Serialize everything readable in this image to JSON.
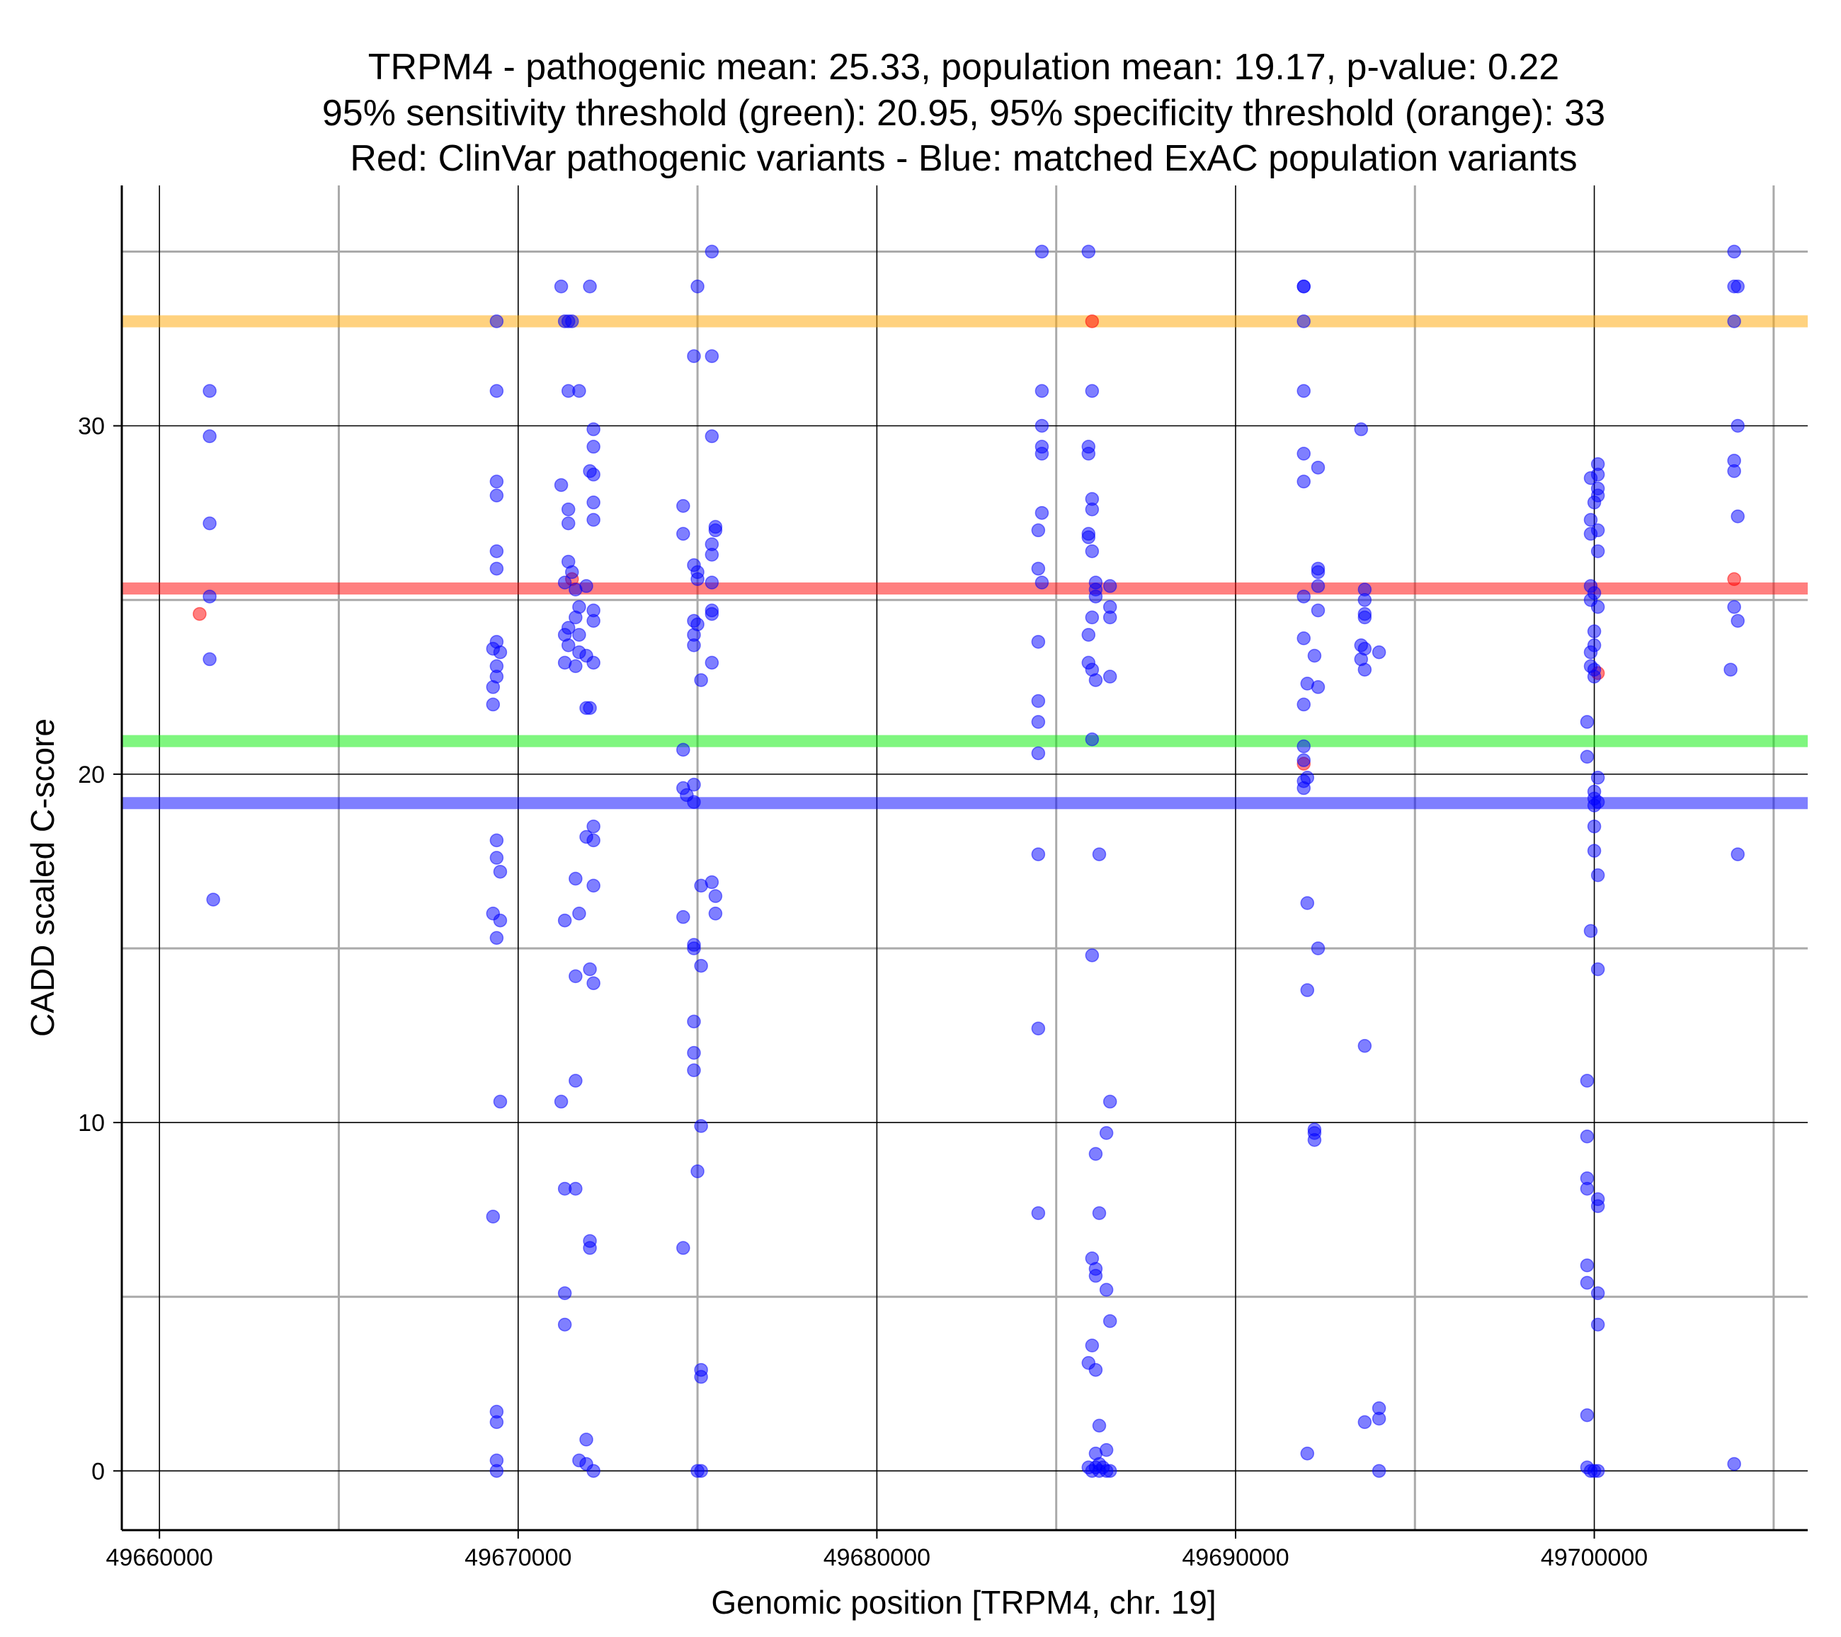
{
  "chart_data": {
    "type": "scatter",
    "title_lines": [
      "TRPM4 - pathogenic mean: 25.33, population mean: 19.17, p-value: 0.22",
      "95% sensitivity threshold (green): 20.95, 95% specificity threshold (orange): 33",
      "Red: ClinVar pathogenic variants - Blue: matched ExAC population variants"
    ],
    "xlabel": "Genomic position [TRPM4, chr. 19]",
    "ylabel": "CADD scaled C-score",
    "xlim": [
      49658950,
      49705950
    ],
    "ylim": [
      -1.7,
      36.9
    ],
    "x_major_ticks": [
      49660000,
      49670000,
      49680000,
      49690000,
      49700000
    ],
    "x_tick_labels": [
      "49660000",
      "49670000",
      "49680000",
      "49690000",
      "49700000"
    ],
    "x_minor_grid": [
      49665000,
      49675000,
      49685000,
      49695000,
      49705000
    ],
    "y_major_ticks": [
      0,
      10,
      20,
      30
    ],
    "y_tick_labels": [
      "0",
      "10",
      "20",
      "30"
    ],
    "y_minor_grid": [
      5,
      15,
      25,
      35
    ],
    "colors": {
      "pathogenic": "#ff0000",
      "population": "#0000ff",
      "sensitivity": "#00ee00",
      "specificity": "#ffa500",
      "pathogenic_mean_line": "#ff0000",
      "population_mean_line": "#0000ff",
      "major_grid": "#000000",
      "minor_grid": "#aaaaaa"
    },
    "reference_lines": [
      {
        "name": "specificity-threshold",
        "value": 33,
        "color": "#ffa500"
      },
      {
        "name": "pathogenic-mean",
        "value": 25.33,
        "color": "#ff0000"
      },
      {
        "name": "sensitivity-threshold",
        "value": 20.95,
        "color": "#00ee00"
      },
      {
        "name": "population-mean",
        "value": 19.17,
        "color": "#0000ff"
      }
    ],
    "pathogenic": [
      {
        "x": 49661120,
        "y": 24.6
      },
      {
        "x": 49671500,
        "y": 25.6
      },
      {
        "x": 49686000,
        "y": 33.0
      },
      {
        "x": 49691900,
        "y": 20.3
      },
      {
        "x": 49700100,
        "y": 22.9
      },
      {
        "x": 49703900,
        "y": 25.6
      }
    ],
    "population": [
      {
        "x": 49661400,
        "y": 31.0
      },
      {
        "x": 49661400,
        "y": 29.7
      },
      {
        "x": 49661400,
        "y": 27.2
      },
      {
        "x": 49661400,
        "y": 25.1
      },
      {
        "x": 49661400,
        "y": 23.3
      },
      {
        "x": 49661500,
        "y": 16.4
      },
      {
        "x": 49669400,
        "y": 33.0
      },
      {
        "x": 49669400,
        "y": 31.0
      },
      {
        "x": 49669400,
        "y": 28.4
      },
      {
        "x": 49669400,
        "y": 28.0
      },
      {
        "x": 49669400,
        "y": 26.4
      },
      {
        "x": 49669400,
        "y": 25.9
      },
      {
        "x": 49669400,
        "y": 23.8
      },
      {
        "x": 49669300,
        "y": 23.6
      },
      {
        "x": 49669500,
        "y": 23.5
      },
      {
        "x": 49669400,
        "y": 23.1
      },
      {
        "x": 49669400,
        "y": 22.8
      },
      {
        "x": 49669300,
        "y": 22.5
      },
      {
        "x": 49669300,
        "y": 22.0
      },
      {
        "x": 49669400,
        "y": 18.1
      },
      {
        "x": 49669400,
        "y": 17.6
      },
      {
        "x": 49669500,
        "y": 17.2
      },
      {
        "x": 49669300,
        "y": 16.0
      },
      {
        "x": 49669500,
        "y": 15.8
      },
      {
        "x": 49669400,
        "y": 15.3
      },
      {
        "x": 49669500,
        "y": 10.6
      },
      {
        "x": 49669300,
        "y": 7.3
      },
      {
        "x": 49669400,
        "y": 1.7
      },
      {
        "x": 49669400,
        "y": 1.4
      },
      {
        "x": 49669400,
        "y": 0.3
      },
      {
        "x": 49669400,
        "y": 0.0
      },
      {
        "x": 49671200,
        "y": 34.0
      },
      {
        "x": 49671300,
        "y": 33.0
      },
      {
        "x": 49671400,
        "y": 33.0
      },
      {
        "x": 49671500,
        "y": 33.0
      },
      {
        "x": 49671400,
        "y": 31.0
      },
      {
        "x": 49671700,
        "y": 31.0
      },
      {
        "x": 49671200,
        "y": 28.3
      },
      {
        "x": 49671400,
        "y": 27.6
      },
      {
        "x": 49671400,
        "y": 27.2
      },
      {
        "x": 49671400,
        "y": 26.1
      },
      {
        "x": 49671500,
        "y": 25.8
      },
      {
        "x": 49671300,
        "y": 25.5
      },
      {
        "x": 49671600,
        "y": 25.3
      },
      {
        "x": 49671700,
        "y": 24.8
      },
      {
        "x": 49671600,
        "y": 24.5
      },
      {
        "x": 49671400,
        "y": 24.2
      },
      {
        "x": 49671300,
        "y": 24.0
      },
      {
        "x": 49671700,
        "y": 24.0
      },
      {
        "x": 49671400,
        "y": 23.7
      },
      {
        "x": 49671700,
        "y": 23.5
      },
      {
        "x": 49671300,
        "y": 23.2
      },
      {
        "x": 49671600,
        "y": 23.1
      },
      {
        "x": 49671600,
        "y": 17.0
      },
      {
        "x": 49671700,
        "y": 16.0
      },
      {
        "x": 49671300,
        "y": 15.8
      },
      {
        "x": 49671600,
        "y": 14.2
      },
      {
        "x": 49671600,
        "y": 11.2
      },
      {
        "x": 49671200,
        "y": 10.6
      },
      {
        "x": 49671300,
        "y": 8.1
      },
      {
        "x": 49671600,
        "y": 8.1
      },
      {
        "x": 49671300,
        "y": 5.1
      },
      {
        "x": 49671300,
        "y": 4.2
      },
      {
        "x": 49671700,
        "y": 0.3
      },
      {
        "x": 49672000,
        "y": 34.0
      },
      {
        "x": 49672100,
        "y": 29.9
      },
      {
        "x": 49672100,
        "y": 29.4
      },
      {
        "x": 49672000,
        "y": 28.7
      },
      {
        "x": 49672100,
        "y": 28.6
      },
      {
        "x": 49672100,
        "y": 27.8
      },
      {
        "x": 49672100,
        "y": 27.3
      },
      {
        "x": 49671900,
        "y": 25.4
      },
      {
        "x": 49672100,
        "y": 24.7
      },
      {
        "x": 49672100,
        "y": 24.4
      },
      {
        "x": 49671900,
        "y": 23.4
      },
      {
        "x": 49672100,
        "y": 23.2
      },
      {
        "x": 49671900,
        "y": 21.9
      },
      {
        "x": 49672000,
        "y": 21.9
      },
      {
        "x": 49672100,
        "y": 18.5
      },
      {
        "x": 49671900,
        "y": 18.2
      },
      {
        "x": 49672100,
        "y": 18.1
      },
      {
        "x": 49672100,
        "y": 16.8
      },
      {
        "x": 49672000,
        "y": 14.4
      },
      {
        "x": 49672100,
        "y": 14.0
      },
      {
        "x": 49672000,
        "y": 6.6
      },
      {
        "x": 49672000,
        "y": 6.4
      },
      {
        "x": 49671900,
        "y": 0.9
      },
      {
        "x": 49671900,
        "y": 0.2
      },
      {
        "x": 49672100,
        "y": 0.0
      },
      {
        "x": 49675000,
        "y": 34.0
      },
      {
        "x": 49675400,
        "y": 35.0
      },
      {
        "x": 49674900,
        "y": 32.0
      },
      {
        "x": 49675400,
        "y": 32.0
      },
      {
        "x": 49675400,
        "y": 29.7
      },
      {
        "x": 49674600,
        "y": 27.7
      },
      {
        "x": 49674600,
        "y": 26.9
      },
      {
        "x": 49675500,
        "y": 27.0
      },
      {
        "x": 49675500,
        "y": 27.1
      },
      {
        "x": 49675400,
        "y": 26.6
      },
      {
        "x": 49675400,
        "y": 26.3
      },
      {
        "x": 49674900,
        "y": 26.0
      },
      {
        "x": 49675000,
        "y": 25.8
      },
      {
        "x": 49675000,
        "y": 25.6
      },
      {
        "x": 49675400,
        "y": 25.5
      },
      {
        "x": 49675400,
        "y": 24.7
      },
      {
        "x": 49675400,
        "y": 24.6
      },
      {
        "x": 49674900,
        "y": 24.4
      },
      {
        "x": 49675000,
        "y": 24.3
      },
      {
        "x": 49674900,
        "y": 24.0
      },
      {
        "x": 49674900,
        "y": 23.7
      },
      {
        "x": 49675400,
        "y": 23.2
      },
      {
        "x": 49675100,
        "y": 22.7
      },
      {
        "x": 49674600,
        "y": 20.7
      },
      {
        "x": 49674900,
        "y": 19.7
      },
      {
        "x": 49674600,
        "y": 19.6
      },
      {
        "x": 49674700,
        "y": 19.4
      },
      {
        "x": 49674900,
        "y": 19.2
      },
      {
        "x": 49675400,
        "y": 16.9
      },
      {
        "x": 49675100,
        "y": 16.8
      },
      {
        "x": 49675500,
        "y": 16.5
      },
      {
        "x": 49675500,
        "y": 16.0
      },
      {
        "x": 49674600,
        "y": 15.9
      },
      {
        "x": 49674900,
        "y": 15.1
      },
      {
        "x": 49674900,
        "y": 15.0
      },
      {
        "x": 49675100,
        "y": 14.5
      },
      {
        "x": 49674900,
        "y": 12.9
      },
      {
        "x": 49674900,
        "y": 12.0
      },
      {
        "x": 49674900,
        "y": 11.5
      },
      {
        "x": 49675100,
        "y": 9.9
      },
      {
        "x": 49675000,
        "y": 8.6
      },
      {
        "x": 49674600,
        "y": 6.4
      },
      {
        "x": 49675100,
        "y": 2.9
      },
      {
        "x": 49675100,
        "y": 2.7
      },
      {
        "x": 49675000,
        "y": 0.0
      },
      {
        "x": 49675100,
        "y": 0.0
      },
      {
        "x": 49684600,
        "y": 35.0
      },
      {
        "x": 49684600,
        "y": 31.0
      },
      {
        "x": 49684600,
        "y": 30.0
      },
      {
        "x": 49684600,
        "y": 29.4
      },
      {
        "x": 49684600,
        "y": 29.2
      },
      {
        "x": 49684600,
        "y": 27.5
      },
      {
        "x": 49684500,
        "y": 27.0
      },
      {
        "x": 49684500,
        "y": 25.9
      },
      {
        "x": 49684600,
        "y": 25.5
      },
      {
        "x": 49684500,
        "y": 23.8
      },
      {
        "x": 49684500,
        "y": 22.1
      },
      {
        "x": 49684500,
        "y": 21.5
      },
      {
        "x": 49684500,
        "y": 20.6
      },
      {
        "x": 49684500,
        "y": 17.7
      },
      {
        "x": 49684500,
        "y": 12.7
      },
      {
        "x": 49684500,
        "y": 7.4
      },
      {
        "x": 49685900,
        "y": 35.0
      },
      {
        "x": 49686000,
        "y": 31.0
      },
      {
        "x": 49685900,
        "y": 29.4
      },
      {
        "x": 49685900,
        "y": 29.2
      },
      {
        "x": 49686000,
        "y": 27.9
      },
      {
        "x": 49686000,
        "y": 27.6
      },
      {
        "x": 49685900,
        "y": 26.9
      },
      {
        "x": 49685900,
        "y": 26.8
      },
      {
        "x": 49686000,
        "y": 26.4
      },
      {
        "x": 49686100,
        "y": 25.5
      },
      {
        "x": 49686100,
        "y": 25.3
      },
      {
        "x": 49686100,
        "y": 25.1
      },
      {
        "x": 49686000,
        "y": 24.5
      },
      {
        "x": 49685900,
        "y": 24.0
      },
      {
        "x": 49685900,
        "y": 23.2
      },
      {
        "x": 49686000,
        "y": 23.0
      },
      {
        "x": 49686100,
        "y": 22.7
      },
      {
        "x": 49686000,
        "y": 21.0
      },
      {
        "x": 49686500,
        "y": 25.4
      },
      {
        "x": 49686500,
        "y": 24.8
      },
      {
        "x": 49686500,
        "y": 24.5
      },
      {
        "x": 49686500,
        "y": 22.8
      },
      {
        "x": 49686200,
        "y": 17.7
      },
      {
        "x": 49686000,
        "y": 14.8
      },
      {
        "x": 49686500,
        "y": 10.6
      },
      {
        "x": 49686400,
        "y": 9.7
      },
      {
        "x": 49686100,
        "y": 9.1
      },
      {
        "x": 49686200,
        "y": 7.4
      },
      {
        "x": 49686000,
        "y": 6.1
      },
      {
        "x": 49686100,
        "y": 5.8
      },
      {
        "x": 49686100,
        "y": 5.6
      },
      {
        "x": 49686400,
        "y": 5.2
      },
      {
        "x": 49686500,
        "y": 4.3
      },
      {
        "x": 49686000,
        "y": 3.6
      },
      {
        "x": 49685900,
        "y": 3.1
      },
      {
        "x": 49686100,
        "y": 2.9
      },
      {
        "x": 49686200,
        "y": 1.3
      },
      {
        "x": 49686100,
        "y": 0.5
      },
      {
        "x": 49686400,
        "y": 0.6
      },
      {
        "x": 49685900,
        "y": 0.1
      },
      {
        "x": 49686000,
        "y": 0.0
      },
      {
        "x": 49686100,
        "y": 0.1
      },
      {
        "x": 49686200,
        "y": 0.0
      },
      {
        "x": 49686300,
        "y": 0.1
      },
      {
        "x": 49686400,
        "y": 0.0
      },
      {
        "x": 49686500,
        "y": 0.0
      },
      {
        "x": 49686200,
        "y": 0.2
      },
      {
        "x": 49691900,
        "y": 34.0
      },
      {
        "x": 49691900,
        "y": 34.0
      },
      {
        "x": 49691900,
        "y": 33.0
      },
      {
        "x": 49691900,
        "y": 31.0
      },
      {
        "x": 49691900,
        "y": 29.2
      },
      {
        "x": 49691900,
        "y": 28.4
      },
      {
        "x": 49692300,
        "y": 28.8
      },
      {
        "x": 49692300,
        "y": 25.9
      },
      {
        "x": 49692300,
        "y": 25.8
      },
      {
        "x": 49692300,
        "y": 25.4
      },
      {
        "x": 49691900,
        "y": 25.1
      },
      {
        "x": 49692300,
        "y": 24.7
      },
      {
        "x": 49691900,
        "y": 23.9
      },
      {
        "x": 49692200,
        "y": 23.4
      },
      {
        "x": 49692000,
        "y": 22.6
      },
      {
        "x": 49692300,
        "y": 22.5
      },
      {
        "x": 49691900,
        "y": 22.0
      },
      {
        "x": 49691900,
        "y": 20.8
      },
      {
        "x": 49691900,
        "y": 20.4
      },
      {
        "x": 49692000,
        "y": 19.9
      },
      {
        "x": 49691900,
        "y": 19.8
      },
      {
        "x": 49691900,
        "y": 19.6
      },
      {
        "x": 49692000,
        "y": 16.3
      },
      {
        "x": 49692300,
        "y": 15.0
      },
      {
        "x": 49692000,
        "y": 13.8
      },
      {
        "x": 49692200,
        "y": 9.8
      },
      {
        "x": 49692200,
        "y": 9.7
      },
      {
        "x": 49692200,
        "y": 9.5
      },
      {
        "x": 49692000,
        "y": 0.5
      },
      {
        "x": 49693500,
        "y": 29.9
      },
      {
        "x": 49693600,
        "y": 25.3
      },
      {
        "x": 49693600,
        "y": 25.0
      },
      {
        "x": 49693600,
        "y": 24.6
      },
      {
        "x": 49693600,
        "y": 24.5
      },
      {
        "x": 49693500,
        "y": 23.7
      },
      {
        "x": 49693600,
        "y": 23.6
      },
      {
        "x": 49693500,
        "y": 23.3
      },
      {
        "x": 49693600,
        "y": 23.0
      },
      {
        "x": 49694000,
        "y": 23.5
      },
      {
        "x": 49693600,
        "y": 12.2
      },
      {
        "x": 49693600,
        "y": 1.4
      },
      {
        "x": 49694000,
        "y": 1.8
      },
      {
        "x": 49694000,
        "y": 1.5
      },
      {
        "x": 49694000,
        "y": 0.0
      },
      {
        "x": 49699900,
        "y": 28.5
      },
      {
        "x": 49700100,
        "y": 28.9
      },
      {
        "x": 49700100,
        "y": 28.6
      },
      {
        "x": 49700100,
        "y": 28.2
      },
      {
        "x": 49700100,
        "y": 28.0
      },
      {
        "x": 49700000,
        "y": 27.8
      },
      {
        "x": 49699900,
        "y": 27.3
      },
      {
        "x": 49700100,
        "y": 27.0
      },
      {
        "x": 49699900,
        "y": 26.9
      },
      {
        "x": 49700100,
        "y": 26.4
      },
      {
        "x": 49699900,
        "y": 25.4
      },
      {
        "x": 49700000,
        "y": 25.2
      },
      {
        "x": 49699900,
        "y": 25.0
      },
      {
        "x": 49700100,
        "y": 24.8
      },
      {
        "x": 49700000,
        "y": 24.1
      },
      {
        "x": 49700000,
        "y": 23.7
      },
      {
        "x": 49699900,
        "y": 23.5
      },
      {
        "x": 49699900,
        "y": 23.1
      },
      {
        "x": 49700000,
        "y": 23.0
      },
      {
        "x": 49700000,
        "y": 22.8
      },
      {
        "x": 49699800,
        "y": 21.5
      },
      {
        "x": 49699800,
        "y": 20.5
      },
      {
        "x": 49700100,
        "y": 19.9
      },
      {
        "x": 49700000,
        "y": 19.5
      },
      {
        "x": 49700000,
        "y": 19.3
      },
      {
        "x": 49700100,
        "y": 19.2
      },
      {
        "x": 49700000,
        "y": 19.1
      },
      {
        "x": 49700000,
        "y": 18.5
      },
      {
        "x": 49700000,
        "y": 17.8
      },
      {
        "x": 49700100,
        "y": 17.1
      },
      {
        "x": 49699900,
        "y": 15.5
      },
      {
        "x": 49700100,
        "y": 14.4
      },
      {
        "x": 49699800,
        "y": 11.2
      },
      {
        "x": 49699800,
        "y": 9.6
      },
      {
        "x": 49699800,
        "y": 8.4
      },
      {
        "x": 49699800,
        "y": 8.1
      },
      {
        "x": 49700100,
        "y": 7.8
      },
      {
        "x": 49700100,
        "y": 7.6
      },
      {
        "x": 49699800,
        "y": 5.9
      },
      {
        "x": 49699800,
        "y": 5.4
      },
      {
        "x": 49700100,
        "y": 5.1
      },
      {
        "x": 49700100,
        "y": 4.2
      },
      {
        "x": 49699800,
        "y": 1.6
      },
      {
        "x": 49699800,
        "y": 0.1
      },
      {
        "x": 49699900,
        "y": 0.0
      },
      {
        "x": 49700000,
        "y": 0.0
      },
      {
        "x": 49700100,
        "y": 0.0
      },
      {
        "x": 49703900,
        "y": 35.0
      },
      {
        "x": 49703900,
        "y": 34.0
      },
      {
        "x": 49704000,
        "y": 34.0
      },
      {
        "x": 49703900,
        "y": 33.0
      },
      {
        "x": 49704000,
        "y": 30.0
      },
      {
        "x": 49703900,
        "y": 29.0
      },
      {
        "x": 49703900,
        "y": 28.7
      },
      {
        "x": 49704000,
        "y": 27.4
      },
      {
        "x": 49703900,
        "y": 24.8
      },
      {
        "x": 49704000,
        "y": 24.4
      },
      {
        "x": 49703800,
        "y": 23.0
      },
      {
        "x": 49704000,
        "y": 17.7
      },
      {
        "x": 49703900,
        "y": 0.2
      }
    ]
  }
}
